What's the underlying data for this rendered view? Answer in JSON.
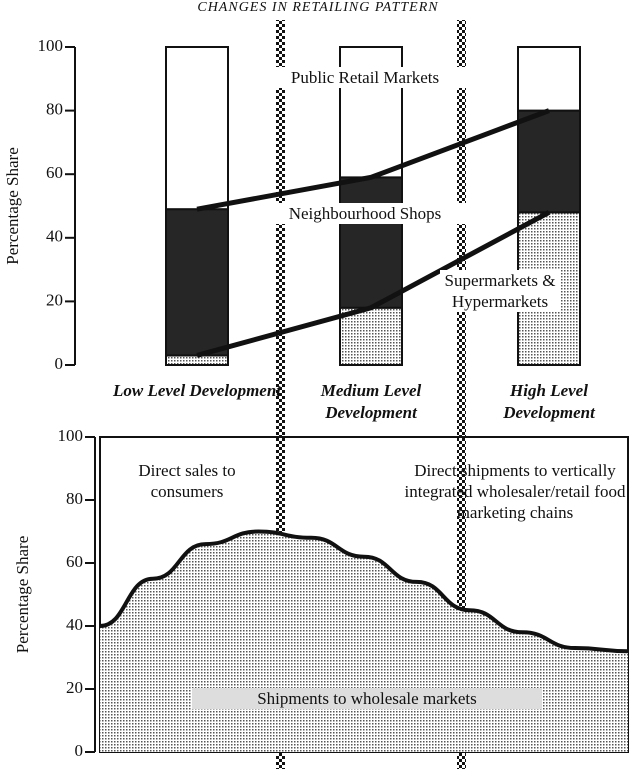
{
  "title": "CHANGES IN RETAILING PATTERN",
  "chart_data": [
    {
      "type": "stacked-bar",
      "ylabel": "Percentage Share",
      "categories": [
        "Low Level Development",
        "Medium Level Development",
        "High Level Development"
      ],
      "series": [
        {
          "name": "Supermarkets & Hypermarkets",
          "color": "#bdbdbd",
          "values": [
            3,
            18,
            48
          ]
        },
        {
          "name": "Neighbourhood Shops",
          "color": "#262626",
          "values": [
            46,
            41,
            32
          ]
        },
        {
          "name": "Public Retail Markets",
          "color": "#ffffff",
          "values": [
            51,
            41,
            20
          ]
        }
      ],
      "ylim": [
        0,
        100
      ],
      "yticks": [
        0,
        20,
        40,
        60,
        80,
        100
      ]
    },
    {
      "type": "area",
      "ylabel": "Percentage Share",
      "x": [
        0,
        1,
        2,
        3,
        4,
        5,
        6,
        7,
        8,
        9,
        10
      ],
      "values": [
        40,
        55,
        66,
        70,
        68,
        62,
        54,
        45,
        38,
        33,
        32
      ],
      "color": "#cfcfcf",
      "xlim": [
        0,
        10
      ],
      "ylim": [
        0,
        100
      ],
      "yticks": [
        0,
        20,
        40,
        60,
        80,
        100
      ],
      "annotations": [
        "Direct sales to consumers",
        "Direct shipments to vertically integrated wholesaler/retail food marketing chains",
        "Shipments to wholesale markets"
      ]
    }
  ]
}
